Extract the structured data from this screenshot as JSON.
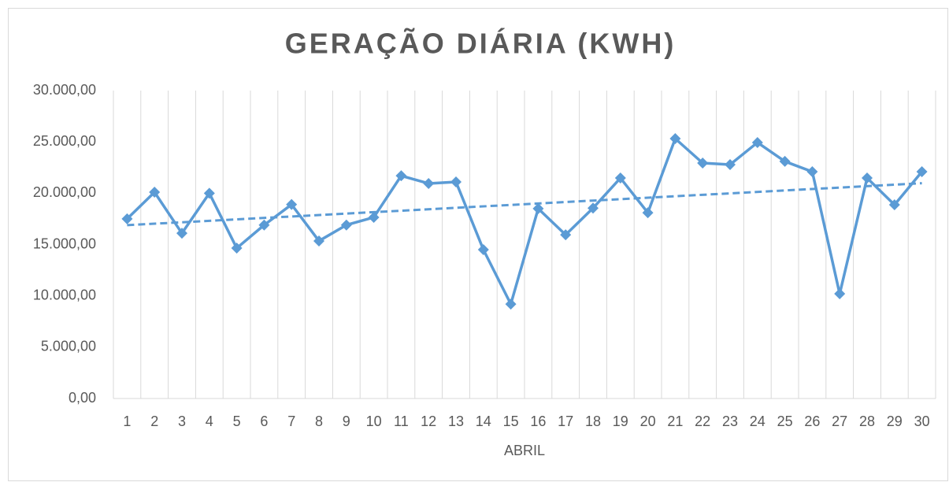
{
  "chart_data": {
    "type": "line",
    "title": "GERAÇÃO DIÁRIA (KWH)",
    "x_label": "ABRIL",
    "categories": [
      "1",
      "2",
      "3",
      "4",
      "5",
      "6",
      "7",
      "8",
      "9",
      "10",
      "11",
      "12",
      "13",
      "14",
      "15",
      "16",
      "17",
      "18",
      "19",
      "20",
      "21",
      "22",
      "23",
      "24",
      "25",
      "26",
      "27",
      "28",
      "29",
      "30"
    ],
    "series": [
      {
        "name": "Geração",
        "color": "#5b9bd5",
        "values": [
          17500,
          20100,
          16100,
          20000,
          14650,
          16900,
          18900,
          15350,
          16900,
          17650,
          21700,
          20950,
          21100,
          14500,
          9200,
          18500,
          15950,
          18550,
          21480,
          18100,
          25320,
          22940,
          22790,
          24940,
          23100,
          22100,
          10200,
          21480,
          18870,
          22100
        ]
      }
    ],
    "ylim": [
      0,
      30000
    ],
    "yticks": [
      {
        "value": 0,
        "label": "0,00"
      },
      {
        "value": 5000,
        "label": "5.000,00"
      },
      {
        "value": 10000,
        "label": "10.000,00"
      },
      {
        "value": 15000,
        "label": "15.000,00"
      },
      {
        "value": 20000,
        "label": "20.000,00"
      },
      {
        "value": 25000,
        "label": "25.000,00"
      },
      {
        "value": 30000,
        "label": "30.000,00"
      }
    ],
    "grid": "x",
    "trendline": "linear",
    "marker": "diamond"
  }
}
